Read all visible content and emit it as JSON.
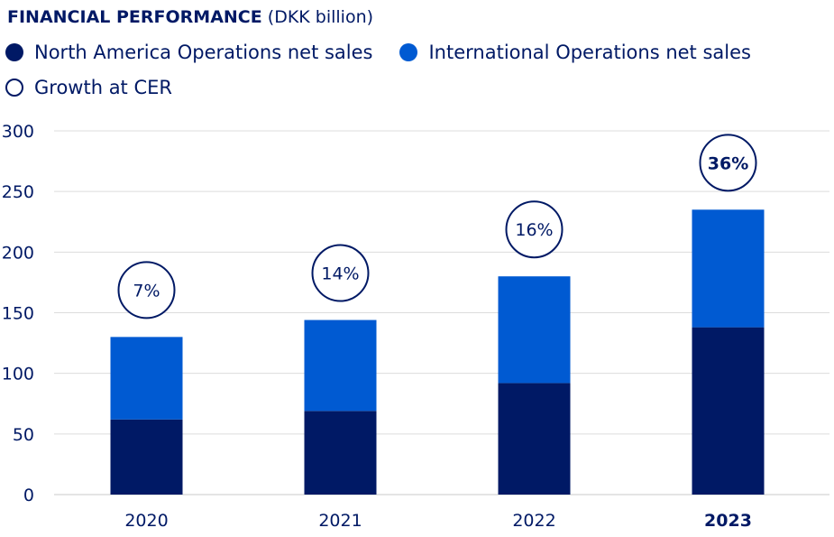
{
  "chart_data": {
    "type": "bar",
    "stacked": true,
    "title": "FINANCIAL PERFORMANCE",
    "title_unit": "(DKK billion)",
    "categories": [
      "2020",
      "2021",
      "2022",
      "2023"
    ],
    "highlight_category": "2023",
    "series": [
      {
        "name": "North America Operations net sales",
        "color": "#001965",
        "values": [
          62,
          69,
          92,
          138
        ]
      },
      {
        "name": "International Operations net sales",
        "color": "#005ad2",
        "values": [
          68,
          75,
          88,
          97
        ]
      }
    ],
    "growth": {
      "name": "Growth at CER",
      "labels": [
        "7%",
        "14%",
        "16%",
        "36%"
      ]
    },
    "ylim": [
      0,
      300
    ],
    "yticks": [
      0,
      50,
      100,
      150,
      200,
      250,
      300
    ],
    "grid": true,
    "legend_position": "top-left"
  }
}
